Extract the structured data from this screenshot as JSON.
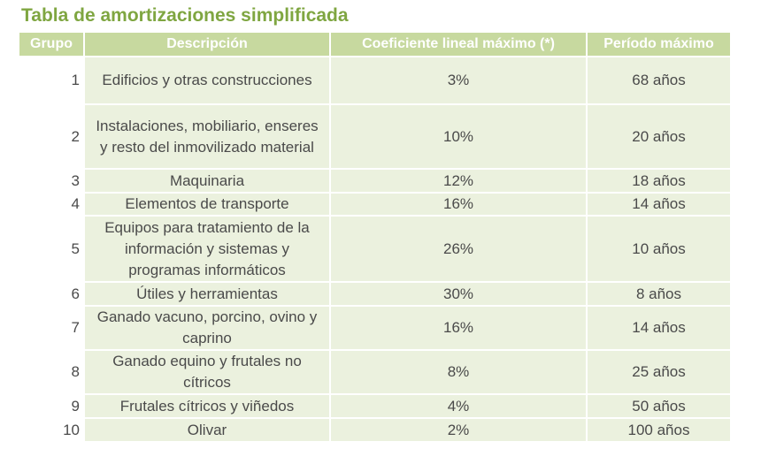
{
  "header": {
    "title": "Tabla de amortizaciones simplificada"
  },
  "table": {
    "columns": [
      "Grupo",
      "Descripción",
      "Coeficiente lineal máximo (*)",
      "Período máximo"
    ],
    "rows": [
      [
        "1",
        "Edificios y otras construcciones",
        "3%",
        "68 años"
      ],
      [
        "2",
        "Instalaciones, mobiliario, enseres y resto del inmovilizado material",
        "10%",
        "20 años"
      ],
      [
        "3",
        "Maquinaria",
        "12%",
        "18 años"
      ],
      [
        "4",
        "Elementos de transporte",
        "16%",
        "14 años"
      ],
      [
        "5",
        "Equipos para tratamiento de la información y sistemas y programas informáticos",
        "26%",
        "10 años"
      ],
      [
        "6",
        "Útiles y herramientas",
        "30%",
        "8 años"
      ],
      [
        "7",
        "Ganado vacuno, porcino, ovino y caprino",
        "16%",
        "14 años"
      ],
      [
        "8",
        "Ganado equino y frutales no cítricos",
        "8%",
        "25 años"
      ],
      [
        "9",
        "Frutales cítricos y viñedos",
        "4%",
        "50 años"
      ],
      [
        "10",
        "Olivar",
        "2%",
        "100 años"
      ]
    ]
  }
}
